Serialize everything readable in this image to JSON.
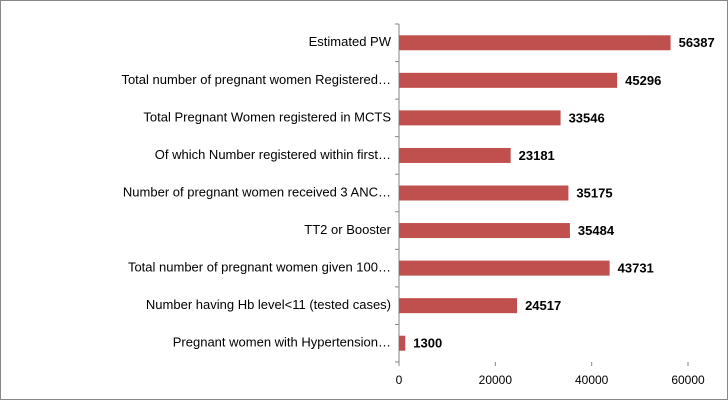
{
  "chart_data": {
    "type": "bar",
    "orientation": "horizontal",
    "categories": [
      "Estimated PW",
      "Total number of pregnant women Registered…",
      "Total Pregnant Women registered in MCTS",
      "Of which Number registered within first…",
      "Number of pregnant women received 3 ANC…",
      "TT2 or Booster",
      "Total number of pregnant women given 100…",
      "Number having Hb level<11 (tested cases)",
      "Pregnant women with Hypertension…"
    ],
    "values": [
      56387,
      45296,
      33546,
      23181,
      35175,
      35484,
      43731,
      24517,
      1300
    ],
    "color": "#c0504d",
    "xlim": [
      0,
      60000
    ],
    "xticks": [
      0,
      20000,
      40000,
      60000
    ],
    "grid": false
  }
}
